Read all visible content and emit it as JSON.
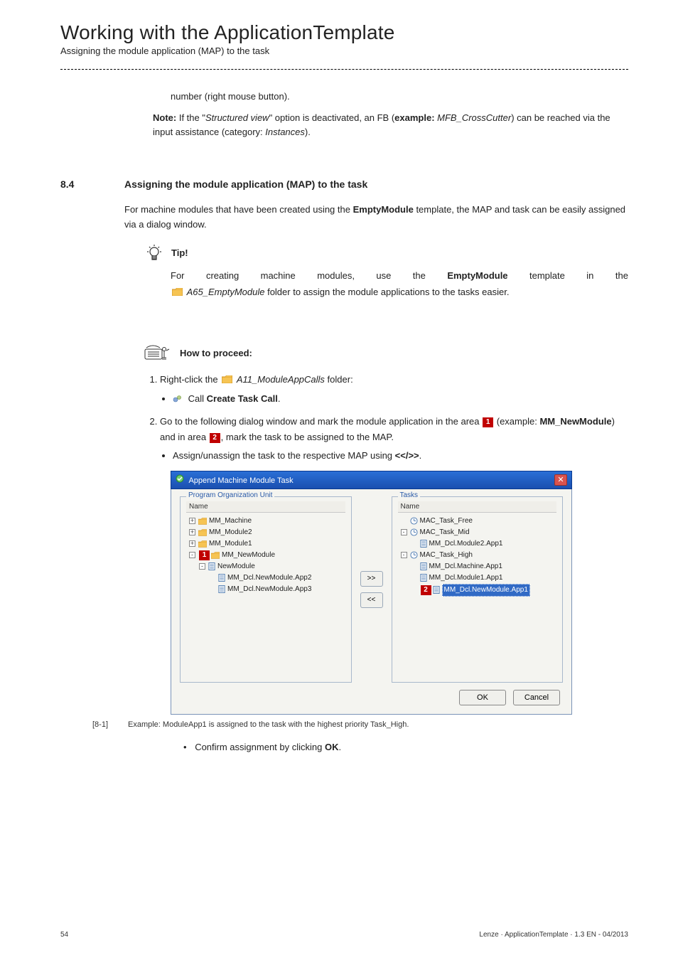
{
  "header": {
    "title": "Working with the ApplicationTemplate",
    "subtitle": "Assigning the module application (MAP) to the task"
  },
  "intro_tail": "number (right mouse button).",
  "note": {
    "label": "Note:",
    "text1": " If the \"",
    "em1": "Structured view",
    "text2": "\" option is deactivated, an FB (",
    "b1": "example:",
    "em2": " MFB_CrossCutter",
    "text3": ") can be reached via the input assistance (category: ",
    "em3": "Instances",
    "text4": ")."
  },
  "section": {
    "num": "8.4",
    "title": "Assigning the module application (MAP) to the task",
    "para": "For machine modules that have been created using the ",
    "bold": "EmptyModule",
    "para2": " template, the MAP and task can be easily assigned via a dialog window."
  },
  "tip": {
    "label": "Tip!",
    "words": [
      "For",
      "creating",
      "machine",
      "modules,",
      "use",
      "the",
      "EmptyModule",
      "template",
      "in",
      "the"
    ],
    "em_folder": "A65_EmptyModule",
    "line2_tail": " folder to assign the module applications to the tasks easier."
  },
  "proceed": {
    "label": "How to proceed:"
  },
  "steps": {
    "s1a": "Right-click the ",
    "s1_folder": "A11_ModuleAppCalls",
    "s1b": " folder:",
    "s1_sub_a": "Call ",
    "s1_sub_b": "Create Task Call",
    "s2a": "Go to the following dialog window and mark the module application in the area ",
    "s2b": " (example: ",
    "s2_bold": "MM_NewModule",
    "s2c": ") and in area ",
    "s2d": ", mark the task to be assigned to the MAP.",
    "s2_sub": "Assign/unassign the task to the respective MAP using ",
    "s2_sub_b": "<</>>",
    "badge1": "1",
    "badge2": "2"
  },
  "dialog": {
    "title": "Append Machine Module Task",
    "left_group": "Program Organization Unit",
    "right_group": "Tasks",
    "col_name": "Name",
    "left_tree": [
      {
        "ind": 0,
        "exp": "+",
        "type": "folder",
        "label": "MM_Machine"
      },
      {
        "ind": 0,
        "exp": "+",
        "type": "folder",
        "label": "MM_Module2"
      },
      {
        "ind": 0,
        "exp": "+",
        "type": "folder",
        "label": "MM_Module1"
      },
      {
        "ind": 0,
        "exp": "-",
        "type": "folder",
        "label": "MM_NewModule",
        "badge": "1"
      },
      {
        "ind": 1,
        "exp": "-",
        "type": "file",
        "label": "NewModule"
      },
      {
        "ind": 2,
        "type": "file",
        "label": "MM_Dcl.NewModule.App2"
      },
      {
        "ind": 2,
        "type": "file",
        "label": "MM_Dcl.NewModule.App3"
      }
    ],
    "right_tree": [
      {
        "ind": 0,
        "type": "clock",
        "label": "MAC_Task_Free"
      },
      {
        "ind": 0,
        "exp": "-",
        "type": "clock",
        "label": "MAC_Task_Mid"
      },
      {
        "ind": 1,
        "type": "file",
        "label": "MM_Dcl.Module2.App1"
      },
      {
        "ind": 0,
        "exp": "-",
        "type": "clock",
        "label": "MAC_Task_High"
      },
      {
        "ind": 1,
        "type": "file",
        "label": "MM_Dcl.Machine.App1"
      },
      {
        "ind": 1,
        "type": "file",
        "label": "MM_Dcl.Module1.App1"
      },
      {
        "ind": 1,
        "type": "file",
        "label": "MM_Dcl.NewModule.App1",
        "badge": "2",
        "sel": true
      }
    ],
    "btn_right": ">>",
    "btn_left": "<<",
    "ok": "OK",
    "cancel": "Cancel"
  },
  "caption": {
    "ref": "[8-1]",
    "text": "Example: ModuleApp1 is assigned to the task with the highest priority Task_High."
  },
  "confirm": {
    "a": "Confirm assignment by clicking ",
    "b": "OK",
    "c": "."
  },
  "footer": {
    "page": "54",
    "right": "Lenze · ApplicationTemplate · 1.3 EN - 04/2013"
  }
}
